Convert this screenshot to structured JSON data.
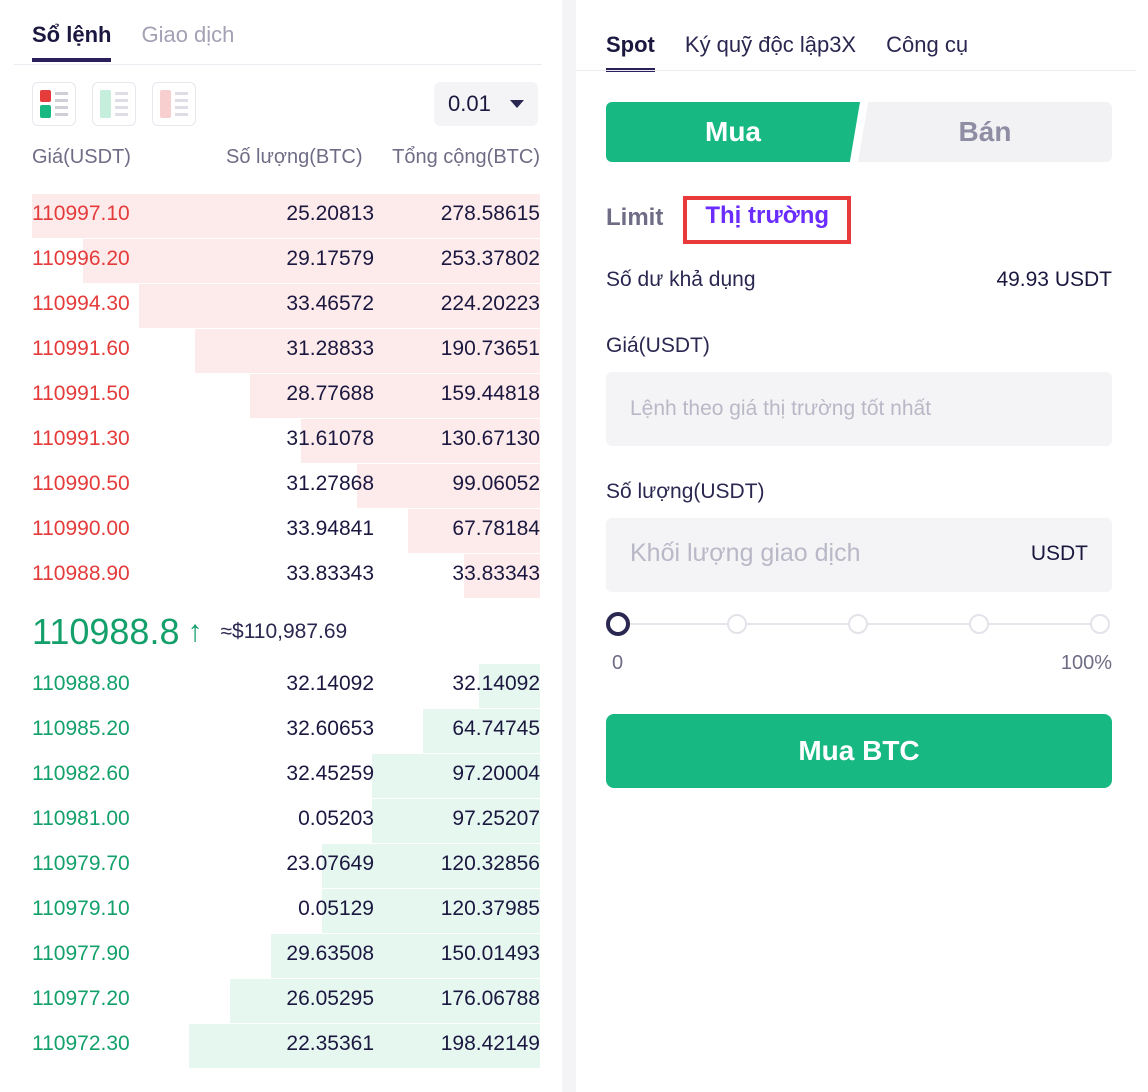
{
  "left_panel": {
    "tabs": [
      {
        "label": "Sổ lệnh"
      },
      {
        "label": "Giao dịch"
      }
    ],
    "precision": "0.01",
    "headers": {
      "price": "Giá(USDT)",
      "qty": "Số lượng(BTC)",
      "total": "Tổng cộng(BTC)"
    },
    "asks": [
      {
        "price": "110997.10",
        "qty": "25.20813",
        "total": "278.58615",
        "depth": 1.0
      },
      {
        "price": "110996.20",
        "qty": "29.17579",
        "total": "253.37802",
        "depth": 0.9
      },
      {
        "price": "110994.30",
        "qty": "33.46572",
        "total": "224.20223",
        "depth": 0.79
      },
      {
        "price": "110991.60",
        "qty": "31.28833",
        "total": "190.73651",
        "depth": 0.68
      },
      {
        "price": "110991.50",
        "qty": "28.77688",
        "total": "159.44818",
        "depth": 0.57
      },
      {
        "price": "110991.30",
        "qty": "31.61078",
        "total": "130.67130",
        "depth": 0.47
      },
      {
        "price": "110990.50",
        "qty": "31.27868",
        "total": "99.06052",
        "depth": 0.36
      },
      {
        "price": "110990.00",
        "qty": "33.94841",
        "total": "67.78184",
        "depth": 0.26
      },
      {
        "price": "110988.90",
        "qty": "33.83343",
        "total": "33.83343",
        "depth": 0.15
      }
    ],
    "mid": {
      "price": "110988.8",
      "arrow": "↑",
      "usd": "≈$110,987.69"
    },
    "bids": [
      {
        "price": "110988.80",
        "qty": "32.14092",
        "total": "32.14092",
        "depth": 0.12
      },
      {
        "price": "110985.20",
        "qty": "32.60653",
        "total": "64.74745",
        "depth": 0.23
      },
      {
        "price": "110982.60",
        "qty": "32.45259",
        "total": "97.20004",
        "depth": 0.33
      },
      {
        "price": "110981.00",
        "qty": "0.05203",
        "total": "97.25207",
        "depth": 0.33
      },
      {
        "price": "110979.70",
        "qty": "23.07649",
        "total": "120.32856",
        "depth": 0.43
      },
      {
        "price": "110979.10",
        "qty": "0.05129",
        "total": "120.37985",
        "depth": 0.43
      },
      {
        "price": "110977.90",
        "qty": "29.63508",
        "total": "150.01493",
        "depth": 0.53
      },
      {
        "price": "110977.20",
        "qty": "26.05295",
        "total": "176.06788",
        "depth": 0.61
      },
      {
        "price": "110972.30",
        "qty": "22.35361",
        "total": "198.42149",
        "depth": 0.69
      }
    ]
  },
  "right_panel": {
    "tabs": [
      {
        "label": "Spot"
      },
      {
        "label": "Ký quỹ độc lập3X"
      },
      {
        "label": "Công cụ"
      }
    ],
    "buy_label": "Mua",
    "sell_label": "Bán",
    "order_types": {
      "limit": "Limit",
      "market": "Thị trường"
    },
    "balance": {
      "label": "Số dư khả dụng",
      "value": "49.93 USDT"
    },
    "price_field": {
      "label": "Giá(USDT)",
      "placeholder": "Lệnh theo giá thị trường tốt nhất"
    },
    "qty_field": {
      "label": "Số lượng(USDT)",
      "placeholder": "Khối lượng giao dịch",
      "unit": "USDT"
    },
    "slider": {
      "min": "0",
      "max": "100%",
      "value": 0
    },
    "submit": "Mua BTC"
  },
  "colors": {
    "buy": "#18b883",
    "sell_text": "#e43b3b",
    "accent": "#6a2cff",
    "highlight_box": "#e83a3a"
  }
}
